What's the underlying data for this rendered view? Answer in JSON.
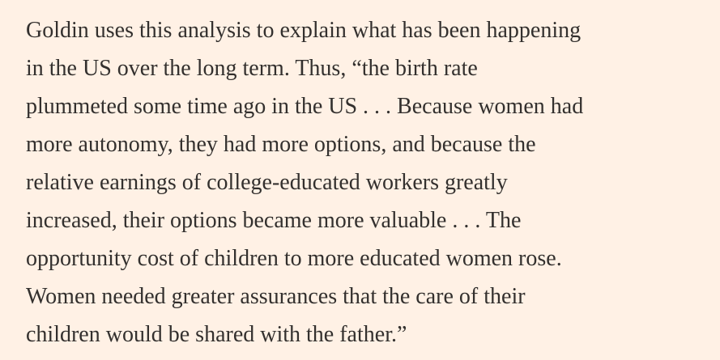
{
  "paragraph": {
    "lines": [
      "Goldin uses this analysis to explain what has been happening",
      "in the US over the long term. Thus, “the birth rate",
      "plummeted some time ago in the US . . . Because women had",
      "more autonomy, they had more options, and because the",
      "relative earnings of college-educated workers greatly",
      "increased, their options became more valuable . . . The",
      "opportunity cost of children to more educated women rose.",
      "Women needed greater assurances that the care of their",
      "children would be shared with the father.”"
    ]
  }
}
